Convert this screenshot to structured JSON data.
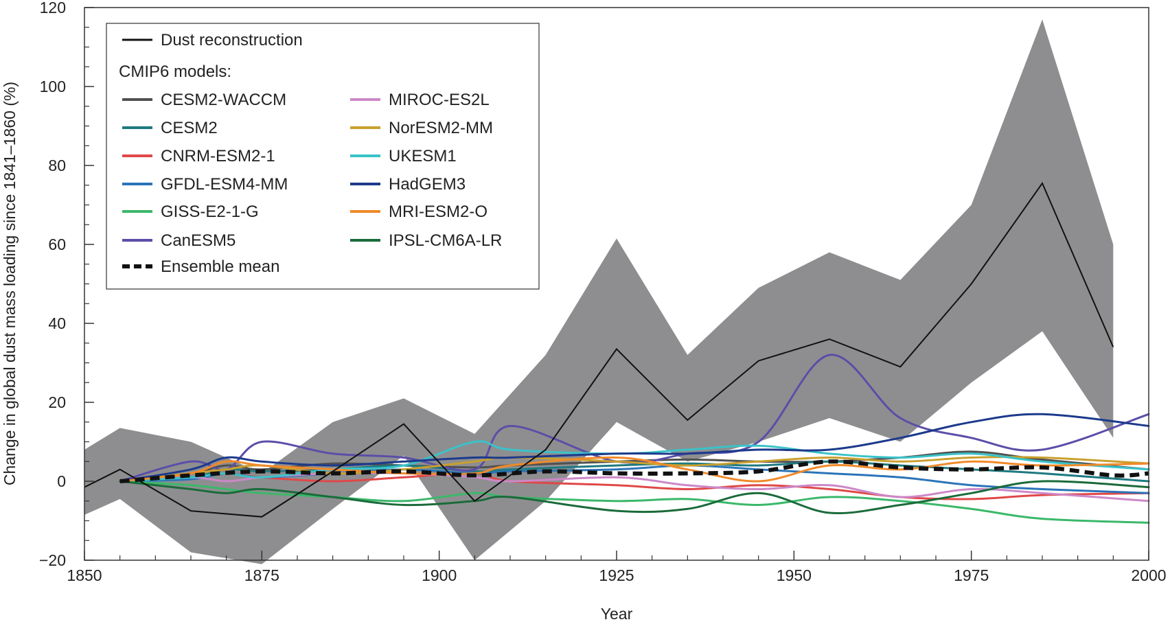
{
  "chart_data": {
    "type": "line",
    "title": "",
    "xlabel": "Year",
    "ylabel": "Change in global dust mass loading since 1841–1860 (%)",
    "xlim": [
      1850,
      2000
    ],
    "ylim": [
      -20,
      120
    ],
    "x_ticks": [
      1850,
      1875,
      1900,
      1925,
      1950,
      1975,
      2000
    ],
    "y_ticks": [
      -20,
      0,
      20,
      40,
      60,
      80,
      100,
      120
    ],
    "grid": false,
    "legend": {
      "placement": "top-left",
      "reconstruction_label": "Dust reconstruction",
      "models_heading": "CMIP6 models:",
      "mean_label": "Ensemble mean"
    },
    "reconstruction": {
      "name": "Dust reconstruction",
      "color": "#111111",
      "x": [
        1850,
        1855,
        1865,
        1875,
        1885,
        1895,
        1905,
        1915,
        1925,
        1935,
        1945,
        1955,
        1965,
        1975,
        1985,
        1995
      ],
      "y": [
        -1.5,
        3,
        -7.5,
        -9,
        2.5,
        14.5,
        -5,
        8,
        33.5,
        15.5,
        30.5,
        36,
        29,
        50,
        75.5,
        34
      ],
      "upper": [
        8,
        13.5,
        10,
        2,
        15,
        21,
        12,
        32,
        61.5,
        32,
        49,
        58,
        51,
        70,
        117,
        60
      ],
      "lower": [
        -8.5,
        -4.5,
        -18,
        -21,
        -7,
        6.5,
        -20,
        -5,
        15,
        5,
        10,
        16,
        10,
        25,
        38,
        11
      ],
      "band_color": "#8e8e90"
    },
    "series": [
      {
        "name": "CESM2-WACCM",
        "color": "#505050",
        "values": [
          0,
          2,
          4,
          3,
          4.5,
          4,
          3.5,
          4,
          5,
          5.5,
          5,
          5,
          6,
          7.5,
          5.5,
          3
        ]
      },
      {
        "name": "CESM2",
        "color": "#1e7a80",
        "values": [
          0,
          1,
          3,
          2.5,
          3,
          4,
          2.5,
          3,
          4,
          4.5,
          4,
          5,
          4,
          3,
          2,
          0
        ]
      },
      {
        "name": "CNRM-ESM2-1",
        "color": "#e04848",
        "values": [
          0,
          1,
          2,
          1,
          0,
          1,
          2,
          0,
          -1,
          -2,
          -1,
          -2,
          -4,
          -4.5,
          -3.5,
          -3
        ]
      },
      {
        "name": "GFDL-ESM4-MM",
        "color": "#2b74b8",
        "values": [
          0,
          0.5,
          2,
          1,
          2,
          3,
          2,
          2.5,
          3,
          4,
          3,
          2,
          1,
          -1,
          -2,
          -3
        ]
      },
      {
        "name": "GISS-E2-1-G",
        "color": "#3bb86a",
        "values": [
          0,
          -1,
          -2,
          -3,
          -4,
          -5,
          -3,
          -4,
          -5,
          -4.5,
          -6,
          -4,
          -5,
          -7,
          -9.5,
          -10.5
        ]
      },
      {
        "name": "CanESM5",
        "color": "#5a4ea8",
        "values": [
          0,
          5,
          3,
          10,
          7,
          6,
          3,
          14,
          5,
          7,
          10,
          32,
          16,
          11,
          8,
          17
        ]
      },
      {
        "name": "MIROC-ES2L",
        "color": "#cc88c8",
        "values": [
          0,
          1,
          0,
          1,
          2,
          2,
          1,
          0,
          1,
          -1,
          -2,
          -1,
          -4,
          -2,
          -3,
          -5
        ]
      },
      {
        "name": "NorESM2-MM",
        "color": "#c9a02e",
        "values": [
          0,
          2,
          3,
          4,
          2,
          3,
          5,
          6,
          5,
          4,
          5,
          6,
          5,
          6,
          6,
          4.5
        ]
      },
      {
        "name": "UKESM1",
        "color": "#39c3c8",
        "values": [
          0,
          1,
          2,
          1,
          3,
          4,
          10,
          8,
          7,
          8,
          9,
          7,
          6,
          7,
          5,
          3
        ]
      },
      {
        "name": "HadGEM3",
        "color": "#1c3a8c",
        "values": [
          0,
          3,
          6,
          5,
          4,
          5,
          6,
          6,
          7,
          7,
          8,
          8,
          11,
          15,
          17,
          14
        ]
      },
      {
        "name": "MRI-ESM2-O",
        "color": "#f08a2a",
        "values": [
          0,
          2,
          5,
          4,
          3,
          2,
          2,
          4,
          6,
          3,
          0,
          4,
          3,
          5,
          4,
          4.5
        ]
      },
      {
        "name": "IPSL-CM6A-LR",
        "color": "#1a6b3a",
        "values": [
          0,
          -2,
          -3,
          -2,
          -4,
          -6,
          -5,
          -4,
          -7.5,
          -7,
          -3,
          -8,
          -6,
          -3,
          0,
          -1.5
        ]
      }
    ],
    "series_x": [
      1855,
      1865,
      1870,
      1875,
      1885,
      1895,
      1905,
      1910,
      1925,
      1935,
      1945,
      1955,
      1965,
      1975,
      1985,
      2000
    ],
    "ensemble_mean": {
      "name": "Ensemble mean",
      "color": "#111111",
      "x": [
        1855,
        1865,
        1875,
        1885,
        1895,
        1905,
        1915,
        1925,
        1935,
        1945,
        1955,
        1965,
        1975,
        1985,
        1995,
        2000
      ],
      "y": [
        0,
        1.5,
        2.5,
        2,
        2.5,
        1.5,
        2.5,
        2,
        2,
        2.5,
        5,
        3.5,
        3,
        3.5,
        1.5,
        2
      ]
    }
  }
}
